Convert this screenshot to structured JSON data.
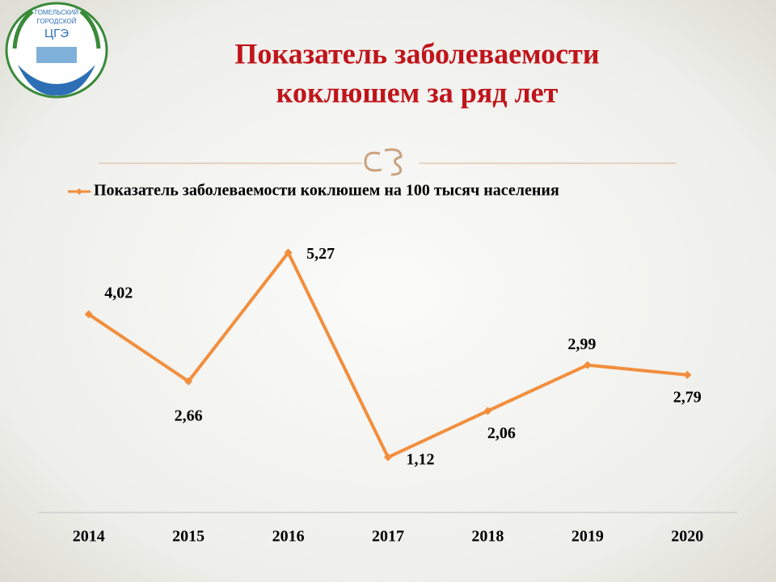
{
  "chart_data": {
    "type": "line",
    "title": [
      "Показатель заболеваемости",
      "коклюшем за ряд лет"
    ],
    "logo": [
      "ГОМЕЛЬСКИЙ",
      "ГОРОДСКОЙ",
      "ЦГЭ"
    ],
    "categories": [
      "2014",
      "2015",
      "2016",
      "2017",
      "2018",
      "2019",
      "2020"
    ],
    "series": [
      {
        "name": "Показатель заболеваемости коклюшем на 100 тысяч населения",
        "color": "#f28e3c",
        "values": [
          4.02,
          2.66,
          5.27,
          1.12,
          2.06,
          2.99,
          2.79
        ],
        "value_labels": [
          "4,02",
          "2,66",
          "5,27",
          "1,12",
          "2,06",
          "2,99",
          "2,79"
        ]
      }
    ],
    "ylim": [
      0,
      6
    ],
    "legend": "top"
  }
}
